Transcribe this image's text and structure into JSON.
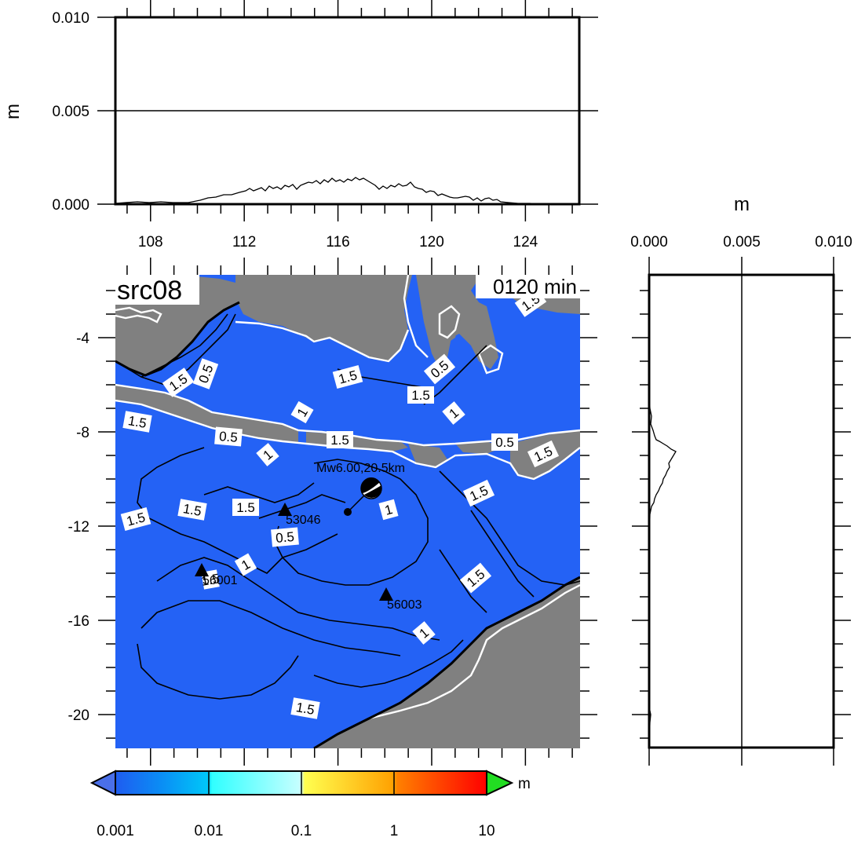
{
  "map": {
    "title": "src08",
    "time_label": "0120 min",
    "lon_ticks": [
      "108",
      "112",
      "116",
      "120",
      "124"
    ],
    "lat_ticks": [
      "-4",
      "-8",
      "-12",
      "-16",
      "-20"
    ],
    "ocean_color": "#2462f5",
    "land_color": "#808080",
    "contour_labels": [
      "1.5",
      "0.5",
      "1.5",
      "1.5",
      "1",
      "1.5",
      "0.5",
      "1.5",
      "0.5",
      "1",
      "1.5",
      "0.5",
      "1",
      "1.5",
      "1.5",
      "1.5",
      "1.5",
      "1",
      "1.5",
      "0.5",
      "1",
      "1.5",
      "1",
      "1.5",
      "1.5"
    ],
    "source_label": "Mw6.00,20.5km",
    "stations": [
      {
        "id": "53046"
      },
      {
        "id": "56001"
      },
      {
        "id": "56003"
      }
    ]
  },
  "top_panel": {
    "unit": "m",
    "y_ticks": [
      "0.000",
      "0.005",
      "0.010"
    ]
  },
  "side_panel": {
    "unit": "m",
    "x_ticks": [
      "0.000",
      "0.005",
      "0.010"
    ]
  },
  "colorbar": {
    "unit": "m",
    "tick_labels": [
      "0.001",
      "0.01",
      "0.1",
      "1",
      "10"
    ],
    "colors": [
      "#1f5cf0",
      "#00b0f8",
      "#40ffff",
      "#a8ffff",
      "#ffff50",
      "#ffb000",
      "#ff6000",
      "#ff0000"
    ],
    "under_color": "#4a6fe8",
    "over_color": "#22dd22"
  }
}
